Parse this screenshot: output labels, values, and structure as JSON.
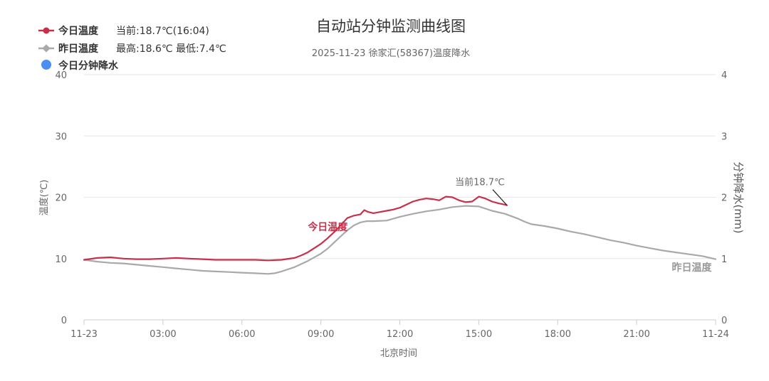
{
  "chart_data": {
    "type": "line",
    "title": "自动站分钟监测曲线图",
    "subtitle": "2025-11-23 徐家汇(58367)温度降水",
    "xlabel": "北京时间",
    "ylabel_left": "温度(℃)",
    "ylabel_right": "分钟降水(mm)",
    "x_range_hours": [
      0,
      24
    ],
    "ylim_left": [
      0,
      40
    ],
    "ylim_right": [
      0,
      4
    ],
    "x_ticks": [
      {
        "h": 0,
        "label": "11-23"
      },
      {
        "h": 3,
        "label": "03:00"
      },
      {
        "h": 6,
        "label": "06:00"
      },
      {
        "h": 9,
        "label": "09:00"
      },
      {
        "h": 12,
        "label": "12:00"
      },
      {
        "h": 15,
        "label": "15:00"
      },
      {
        "h": 18,
        "label": "18:00"
      },
      {
        "h": 21,
        "label": "21:00"
      },
      {
        "h": 24,
        "label": "11-24"
      }
    ],
    "y_ticks_left": [
      {
        "v": 0,
        "label": "0"
      },
      {
        "v": 10,
        "label": "10"
      },
      {
        "v": 20,
        "label": "20"
      },
      {
        "v": 30,
        "label": "30"
      },
      {
        "v": 40,
        "label": "40"
      }
    ],
    "y_ticks_right": [
      {
        "v": 0,
        "label": "0"
      },
      {
        "v": 1,
        "label": "1"
      },
      {
        "v": 2,
        "label": "2"
      },
      {
        "v": 3,
        "label": "3"
      },
      {
        "v": 4,
        "label": "4"
      }
    ],
    "legend": [
      {
        "name": "今日温度",
        "info": "当前:18.7℃(16:04)",
        "color": "#c8304a",
        "marker": "circle-line"
      },
      {
        "name": "昨日温度",
        "info": "最高:18.6℃ 最低:7.4℃",
        "color": "#a9a9a9",
        "marker": "diamond-line"
      },
      {
        "name": "今日分钟降水",
        "info": "",
        "color": "#4a90f0",
        "marker": "dot"
      }
    ],
    "annotation": {
      "text": "当前18.7℃",
      "x_hour": 16.07,
      "y": 18.7
    },
    "series": [
      {
        "name": "今日温度",
        "color": "#c8304a",
        "label": "今日温度",
        "x_hours": [
          0,
          0.5,
          1,
          1.5,
          2,
          2.5,
          3,
          3.5,
          4,
          4.5,
          5,
          5.5,
          6,
          6.5,
          7,
          7.5,
          8,
          8.25,
          8.5,
          8.75,
          9,
          9.25,
          9.5,
          9.75,
          10,
          10.25,
          10.5,
          10.65,
          10.8,
          11,
          11.25,
          11.5,
          11.75,
          12,
          12.25,
          12.5,
          12.75,
          13,
          13.25,
          13.5,
          13.75,
          14,
          14.25,
          14.5,
          14.75,
          15,
          15.25,
          15.5,
          15.75,
          16,
          16.07
        ],
        "values": [
          9.8,
          10.1,
          10.2,
          10.0,
          9.9,
          9.9,
          10.0,
          10.1,
          10.0,
          9.9,
          9.8,
          9.8,
          9.8,
          9.8,
          9.7,
          9.8,
          10.1,
          10.5,
          11.0,
          11.7,
          12.4,
          13.3,
          14.3,
          15.4,
          16.6,
          17.0,
          17.2,
          17.9,
          17.6,
          17.4,
          17.6,
          17.8,
          18.0,
          18.3,
          18.8,
          19.3,
          19.6,
          19.8,
          19.7,
          19.5,
          20.1,
          20.0,
          19.5,
          19.2,
          19.3,
          20.1,
          19.8,
          19.3,
          19.0,
          18.8,
          18.7
        ]
      },
      {
        "name": "昨日温度",
        "color": "#a9a9a9",
        "label": "昨日温度",
        "x_hours": [
          0,
          0.5,
          1,
          1.5,
          2,
          2.5,
          3,
          3.5,
          4,
          4.5,
          5,
          5.5,
          6,
          6.5,
          7,
          7.25,
          7.5,
          8,
          8.5,
          9,
          9.25,
          9.5,
          9.75,
          10,
          10.25,
          10.5,
          10.75,
          11,
          11.5,
          12,
          12.5,
          13,
          13.5,
          14,
          14.5,
          15,
          15.5,
          16,
          16.5,
          16.75,
          17,
          17.5,
          18,
          18.5,
          19,
          19.5,
          20,
          20.5,
          21,
          21.5,
          22,
          22.5,
          23,
          23.5,
          24
        ],
        "values": [
          9.8,
          9.5,
          9.3,
          9.2,
          9.0,
          8.8,
          8.6,
          8.4,
          8.2,
          8.0,
          7.9,
          7.8,
          7.7,
          7.6,
          7.5,
          7.6,
          7.9,
          8.6,
          9.6,
          10.8,
          11.6,
          12.6,
          13.6,
          14.6,
          15.4,
          15.9,
          16.1,
          16.1,
          16.2,
          16.8,
          17.3,
          17.7,
          18.0,
          18.4,
          18.6,
          18.5,
          17.8,
          17.3,
          16.5,
          16.0,
          15.6,
          15.3,
          14.9,
          14.4,
          14.0,
          13.5,
          13.0,
          12.6,
          12.1,
          11.7,
          11.3,
          11.0,
          10.7,
          10.4,
          9.9
        ]
      },
      {
        "name": "今日分钟降水",
        "color": "#4a90f0",
        "x_hours": [],
        "values": []
      }
    ]
  }
}
